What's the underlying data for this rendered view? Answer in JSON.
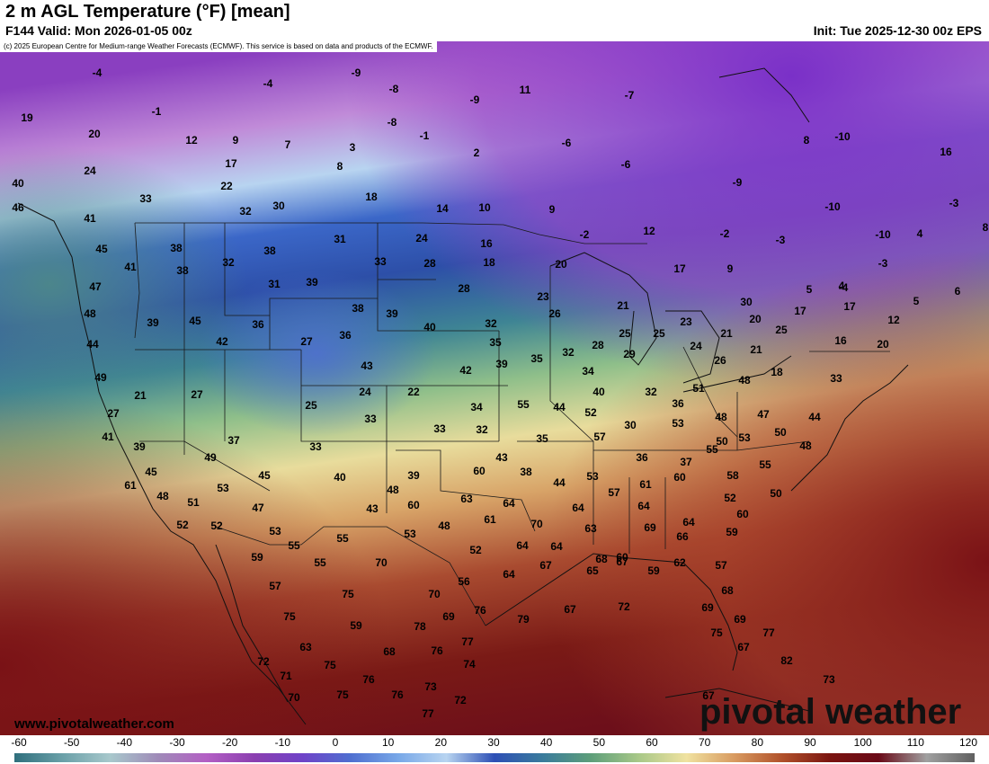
{
  "header": {
    "title": "2 m AGL Temperature (°F) [mean]",
    "valid": "F144 Valid: Mon 2026-01-05 00z",
    "init": "Init: Tue 2025-12-30 00z EPS"
  },
  "credit": "(c) 2025 European Centre for Medium-range Weather Forecasts (ECMWF). This service is based on data and products of the ECMWF.",
  "footer": {
    "site": "www.pivotalweather.com",
    "brand": "pivotal weather"
  },
  "colorbar": {
    "ticks": [
      "-60",
      "-50",
      "-40",
      "-30",
      "-20",
      "-10",
      "0",
      "10",
      "20",
      "30",
      "40",
      "50",
      "60",
      "70",
      "80",
      "90",
      "100",
      "110",
      "120"
    ],
    "stops": [
      "#2f6f7d",
      "#6aa0a8",
      "#a8c8cc",
      "#9f8ab8",
      "#b35fc4",
      "#8b3fb0",
      "#6f43c8",
      "#4f6fd0",
      "#78a8e8",
      "#b8d4f0",
      "#2d4fb5",
      "#3a7b9c",
      "#5d9e7a",
      "#a8c888",
      "#f0e2a0",
      "#d89a60",
      "#b0502a",
      "#7a1410",
      "#6a0a18",
      "#a0a0a0",
      "#606060"
    ]
  },
  "temperature_labels": [
    {
      "t": "-4"
    },
    {
      "t": "-9"
    },
    {
      "t": "-8"
    },
    {
      "t": "11"
    },
    {
      "t": "-4"
    },
    {
      "t": "-8"
    },
    {
      "t": "-9"
    },
    {
      "t": "-7"
    },
    {
      "t": "19"
    },
    {
      "t": "-1"
    },
    {
      "t": "20"
    },
    {
      "t": "12"
    },
    {
      "t": "9"
    },
    {
      "t": "7"
    },
    {
      "t": "3"
    },
    {
      "t": "-1"
    },
    {
      "t": "2"
    },
    {
      "t": "-6"
    },
    {
      "t": "8"
    },
    {
      "t": "-10"
    },
    {
      "t": "16"
    },
    {
      "t": "17"
    },
    {
      "t": "8"
    },
    {
      "t": "-6"
    },
    {
      "t": "24"
    },
    {
      "t": "40"
    },
    {
      "t": "22"
    },
    {
      "t": "18"
    },
    {
      "t": "33"
    },
    {
      "t": "30"
    },
    {
      "t": "32"
    },
    {
      "t": "14"
    },
    {
      "t": "10"
    },
    {
      "t": "9"
    },
    {
      "t": "-9"
    },
    {
      "t": "-10"
    },
    {
      "t": "-2"
    },
    {
      "t": "46"
    },
    {
      "t": "41"
    },
    {
      "t": "12"
    },
    {
      "t": "-2"
    },
    {
      "t": "-3"
    },
    {
      "t": "-10"
    },
    {
      "t": "4"
    },
    {
      "t": "8"
    },
    {
      "t": "-3"
    },
    {
      "t": "-3"
    },
    {
      "t": "-4"
    },
    {
      "t": "45"
    },
    {
      "t": "38"
    },
    {
      "t": "38"
    },
    {
      "t": "31"
    },
    {
      "t": "24"
    },
    {
      "t": "16"
    },
    {
      "t": "32"
    },
    {
      "t": "33"
    },
    {
      "t": "28"
    },
    {
      "t": "18"
    },
    {
      "t": "20"
    },
    {
      "t": "17"
    },
    {
      "t": "9"
    },
    {
      "t": "41"
    },
    {
      "t": "38"
    },
    {
      "t": "47"
    },
    {
      "t": "31"
    },
    {
      "t": "39"
    },
    {
      "t": "28"
    },
    {
      "t": "23"
    },
    {
      "t": "5"
    },
    {
      "t": "4"
    },
    {
      "t": "5"
    },
    {
      "t": "6"
    },
    {
      "t": "48"
    },
    {
      "t": "39"
    },
    {
      "t": "45"
    },
    {
      "t": "36"
    },
    {
      "t": "38"
    },
    {
      "t": "39"
    },
    {
      "t": "21"
    },
    {
      "t": "26"
    },
    {
      "t": "30"
    },
    {
      "t": "17"
    },
    {
      "t": "17"
    },
    {
      "t": "12"
    },
    {
      "t": "44"
    },
    {
      "t": "42"
    },
    {
      "t": "27"
    },
    {
      "t": "36"
    },
    {
      "t": "40"
    },
    {
      "t": "32"
    },
    {
      "t": "35"
    },
    {
      "t": "32"
    },
    {
      "t": "28"
    },
    {
      "t": "25"
    },
    {
      "t": "25"
    },
    {
      "t": "23"
    },
    {
      "t": "20"
    },
    {
      "t": "21"
    },
    {
      "t": "25"
    },
    {
      "t": "16"
    },
    {
      "t": "20"
    },
    {
      "t": "49"
    },
    {
      "t": "43"
    },
    {
      "t": "42"
    },
    {
      "t": "39"
    },
    {
      "t": "35"
    },
    {
      "t": "34"
    },
    {
      "t": "29"
    },
    {
      "t": "24"
    },
    {
      "t": "26"
    },
    {
      "t": "21"
    },
    {
      "t": "18"
    },
    {
      "t": "21"
    },
    {
      "t": "27"
    },
    {
      "t": "24"
    },
    {
      "t": "22"
    },
    {
      "t": "40"
    },
    {
      "t": "32"
    },
    {
      "t": "51"
    },
    {
      "t": "48"
    },
    {
      "t": "36"
    },
    {
      "t": "33"
    },
    {
      "t": "27"
    },
    {
      "t": "25"
    },
    {
      "t": "33"
    },
    {
      "t": "34"
    },
    {
      "t": "55"
    },
    {
      "t": "44"
    },
    {
      "t": "52"
    },
    {
      "t": "48"
    },
    {
      "t": "47"
    },
    {
      "t": "44"
    },
    {
      "t": "41"
    },
    {
      "t": "33"
    },
    {
      "t": "32"
    },
    {
      "t": "30"
    },
    {
      "t": "53"
    },
    {
      "t": "50"
    },
    {
      "t": "50"
    },
    {
      "t": "39"
    },
    {
      "t": "37"
    },
    {
      "t": "33"
    },
    {
      "t": "35"
    },
    {
      "t": "57"
    },
    {
      "t": "53"
    },
    {
      "t": "48"
    },
    {
      "t": "49"
    },
    {
      "t": "43"
    },
    {
      "t": "36"
    },
    {
      "t": "37"
    },
    {
      "t": "55"
    },
    {
      "t": "55"
    },
    {
      "t": "45"
    },
    {
      "t": "45"
    },
    {
      "t": "40"
    },
    {
      "t": "39"
    },
    {
      "t": "60"
    },
    {
      "t": "38"
    },
    {
      "t": "53"
    },
    {
      "t": "58"
    },
    {
      "t": "61"
    },
    {
      "t": "53"
    },
    {
      "t": "48"
    },
    {
      "t": "44"
    },
    {
      "t": "57"
    },
    {
      "t": "61"
    },
    {
      "t": "60"
    },
    {
      "t": "52"
    },
    {
      "t": "50"
    },
    {
      "t": "48"
    },
    {
      "t": "51"
    },
    {
      "t": "47"
    },
    {
      "t": "43"
    },
    {
      "t": "60"
    },
    {
      "t": "63"
    },
    {
      "t": "64"
    },
    {
      "t": "64"
    },
    {
      "t": "64"
    },
    {
      "t": "64"
    },
    {
      "t": "60"
    },
    {
      "t": "52"
    },
    {
      "t": "52"
    },
    {
      "t": "53"
    },
    {
      "t": "48"
    },
    {
      "t": "61"
    },
    {
      "t": "70"
    },
    {
      "t": "63"
    },
    {
      "t": "69"
    },
    {
      "t": "66"
    },
    {
      "t": "59"
    },
    {
      "t": "55"
    },
    {
      "t": "55"
    },
    {
      "t": "53"
    },
    {
      "t": "52"
    },
    {
      "t": "64"
    },
    {
      "t": "64"
    },
    {
      "t": "68"
    },
    {
      "t": "67"
    },
    {
      "t": "62"
    },
    {
      "t": "59"
    },
    {
      "t": "55"
    },
    {
      "t": "70"
    },
    {
      "t": "64"
    },
    {
      "t": "67"
    },
    {
      "t": "65"
    },
    {
      "t": "60"
    },
    {
      "t": "59"
    },
    {
      "t": "57"
    },
    {
      "t": "57"
    },
    {
      "t": "56"
    },
    {
      "t": "75"
    },
    {
      "t": "70"
    },
    {
      "t": "68"
    },
    {
      "t": "75"
    },
    {
      "t": "59"
    },
    {
      "t": "78"
    },
    {
      "t": "69"
    },
    {
      "t": "76"
    },
    {
      "t": "79"
    },
    {
      "t": "67"
    },
    {
      "t": "72"
    },
    {
      "t": "69"
    },
    {
      "t": "69"
    },
    {
      "t": "63"
    },
    {
      "t": "68"
    },
    {
      "t": "76"
    },
    {
      "t": "77"
    },
    {
      "t": "75"
    },
    {
      "t": "77"
    },
    {
      "t": "67"
    },
    {
      "t": "72"
    },
    {
      "t": "71"
    },
    {
      "t": "75"
    },
    {
      "t": "74"
    },
    {
      "t": "82"
    },
    {
      "t": "76"
    },
    {
      "t": "73"
    },
    {
      "t": "70"
    },
    {
      "t": "75"
    },
    {
      "t": "76"
    },
    {
      "t": "73"
    },
    {
      "t": "72"
    },
    {
      "t": "67"
    },
    {
      "t": "77"
    },
    {
      "t": "76"
    },
    {
      "t": "70"
    }
  ]
}
